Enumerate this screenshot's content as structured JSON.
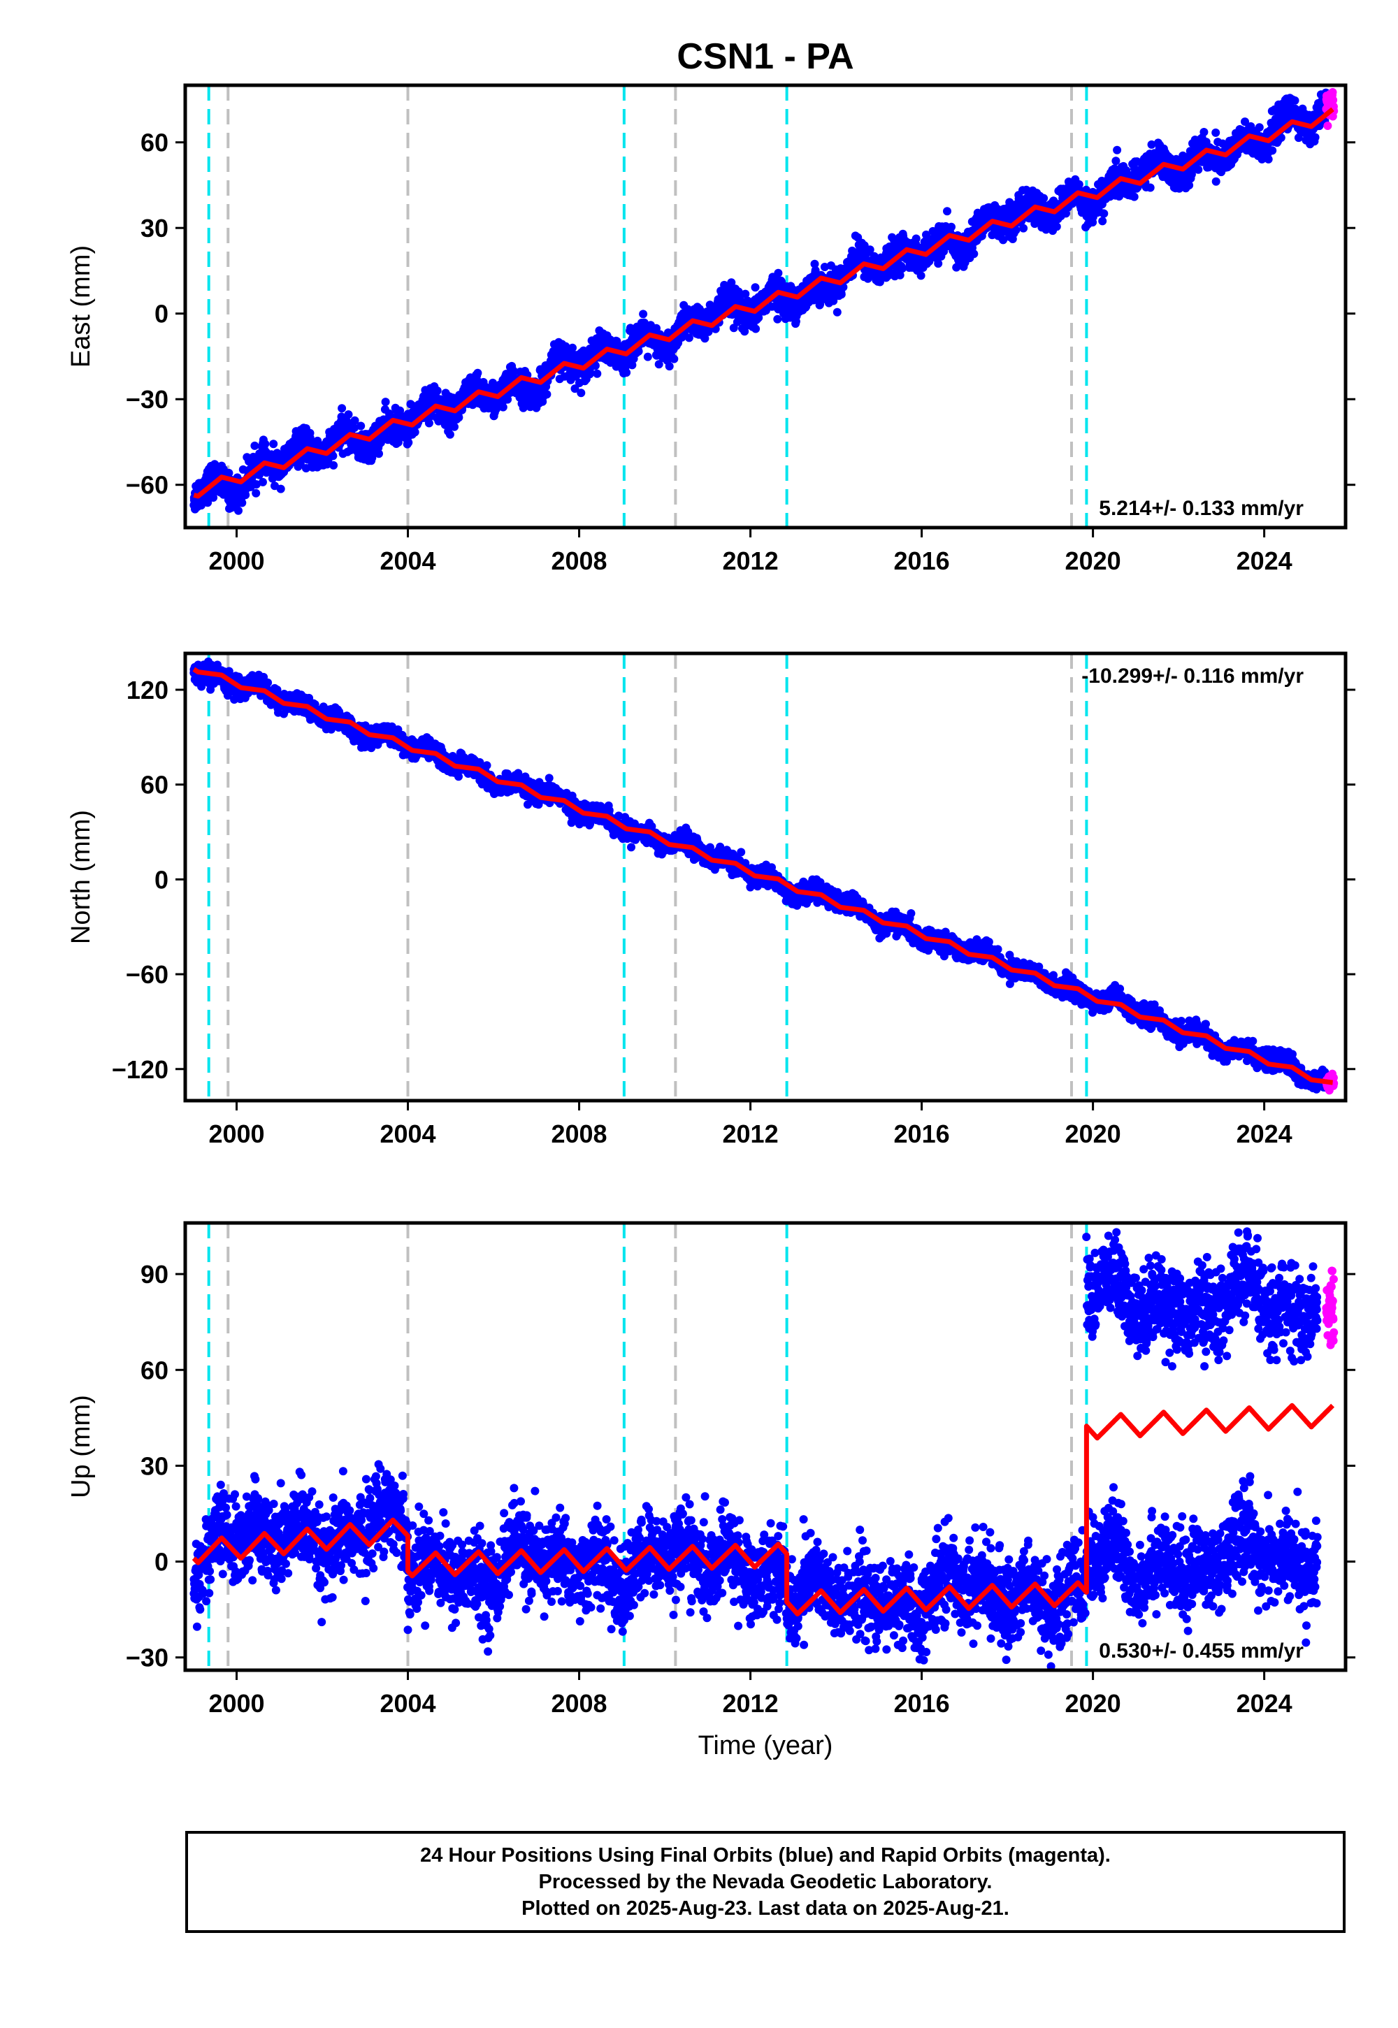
{
  "title": "CSN1 - PA",
  "colors": {
    "final_orbits": "#0000ff",
    "rapid_orbits": "#ff00ff",
    "model": "#ff0000",
    "equipment_change": "#00e5ee",
    "earthquake": "#c0c0c0"
  },
  "caption": {
    "line1": "24 Hour Positions Using Final Orbits (blue) and Rapid Orbits (magenta).",
    "line2": "Processed by the Nevada Geodetic Laboratory.",
    "line3": "Plotted on 2025-Aug-23. Last data on 2025-Aug-21."
  },
  "chart_data": [
    {
      "type": "scatter",
      "ylabel": "East (mm)",
      "xlabel": "",
      "xlim": [
        1998.8,
        2025.9
      ],
      "ylim": [
        -75,
        80
      ],
      "xticks": [
        2000,
        2004,
        2008,
        2012,
        2016,
        2020,
        2024
      ],
      "yticks": [
        -60,
        -30,
        0,
        30,
        60
      ],
      "rate_label": "5.214+/- 0.133 mm/yr",
      "rate_position": "bottom-right",
      "grid": false,
      "cyan_lines": [
        1999.35,
        2009.05,
        2012.85,
        2019.85
      ],
      "gray_lines": [
        1999.8,
        2004.0,
        2010.25,
        2019.5
      ],
      "model": {
        "x": [
          1999.0,
          2025.6
        ],
        "y": [
          -62.5,
          70.0
        ],
        "annual_amplitude": 2.8
      },
      "scatter": {
        "x_start": 1999.0,
        "x_end": 2025.45,
        "scatter_mm": 2.8,
        "offsets": []
      },
      "rapid": {
        "x_start": 2025.45,
        "x_end": 2025.63,
        "y_center": 73,
        "spread": 3
      }
    },
    {
      "type": "scatter",
      "ylabel": "North (mm)",
      "xlabel": "",
      "xlim": [
        1998.8,
        2025.9
      ],
      "ylim": [
        -140,
        143
      ],
      "xticks": [
        2000,
        2004,
        2008,
        2012,
        2016,
        2020,
        2024
      ],
      "yticks": [
        -120,
        -60,
        0,
        60,
        120
      ],
      "rate_label": "-10.299+/- 0.116 mm/yr",
      "rate_position": "top-right",
      "grid": false,
      "cyan_lines": [
        1999.35,
        2009.05,
        2012.85,
        2019.85
      ],
      "gray_lines": [
        1999.8,
        2004.0,
        2010.25,
        2019.5
      ],
      "model": {
        "x": [
          1999.0,
          2025.6
        ],
        "y": [
          134.0,
          -130.0
        ],
        "annual_amplitude": 2.5
      },
      "scatter": {
        "x_start": 1999.0,
        "x_end": 2025.45,
        "scatter_mm": 3.0,
        "offsets": []
      },
      "rapid": {
        "x_start": 2025.45,
        "x_end": 2025.63,
        "y_center": -128,
        "spread": 2
      }
    },
    {
      "type": "scatter",
      "ylabel": "Up (mm)",
      "xlabel": "Time (year)",
      "xlim": [
        1998.8,
        2025.9
      ],
      "ylim": [
        -34,
        106
      ],
      "xticks": [
        2000,
        2004,
        2008,
        2012,
        2016,
        2020,
        2024
      ],
      "yticks": [
        -30,
        0,
        30,
        60,
        90
      ],
      "rate_label": "0.530+/- 0.455 mm/yr",
      "rate_position": "bottom-right",
      "grid": false,
      "cyan_lines": [
        1999.35,
        2009.05,
        2012.85,
        2019.85
      ],
      "gray_lines": [
        1999.8,
        2004.0,
        2010.25,
        2019.5
      ],
      "model_segments": [
        {
          "x": [
            1999.0,
            2004.0
          ],
          "y": [
            3.0,
            10.0
          ]
        },
        {
          "x": [
            2004.0,
            2012.85
          ],
          "y": [
            -1.0,
            2.0
          ]
        },
        {
          "x": [
            2012.85,
            2019.85
          ],
          "y": [
            -13.0,
            -10.0
          ]
        },
        {
          "x": [
            2019.85,
            2025.6
          ],
          "y": [
            42.0,
            46.0
          ]
        }
      ],
      "annual_amplitude": 3.5,
      "scatter_segments": [
        {
          "x": [
            1999.0,
            2004.0
          ],
          "y": [
            3.0,
            12.0
          ]
        },
        {
          "x": [
            2004.0,
            2012.85
          ],
          "y": [
            -2.0,
            0.0
          ]
        },
        {
          "x": [
            2012.85,
            2019.85
          ],
          "y": [
            -13.0,
            -8.0
          ]
        },
        {
          "x": [
            2019.85,
            2025.25
          ],
          "y": [
            82.0,
            80.0
          ]
        },
        {
          "x": [
            2019.85,
            2025.25
          ],
          "y": [
            -2.0,
            2.0
          ]
        }
      ],
      "scatter_mm": 6.5,
      "rapid": {
        "x_start": 2025.45,
        "x_end": 2025.63,
        "y_center": 79,
        "spread": 5
      }
    }
  ]
}
